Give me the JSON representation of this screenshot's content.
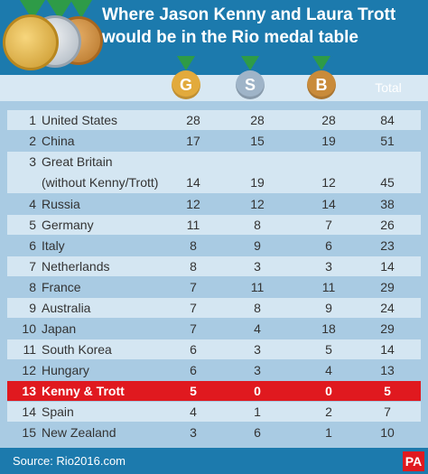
{
  "header": {
    "title_line1": "Where Jason Kenny and Laura Trott",
    "title_line2": "would be in the Rio medal table"
  },
  "columns": {
    "gold": "G",
    "silver": "S",
    "bronze": "B",
    "total": "Total"
  },
  "colors": {
    "banner": "#1c7aad",
    "gold": "#e2aa3c",
    "silver": "#9fb4c8",
    "bronze": "#c98b3a",
    "highlight": "#e0191f",
    "ribbon": "#2e9b47"
  },
  "rows": [
    {
      "rank": "1",
      "country": "United States",
      "g": "28",
      "s": "28",
      "b": "28",
      "t": "84"
    },
    {
      "rank": "2",
      "country": "China",
      "g": "17",
      "s": "15",
      "b": "19",
      "t": "51"
    },
    {
      "rank": "3",
      "country": "Great Britain",
      "country2": "(without Kenny/Trott)",
      "g": "14",
      "s": "19",
      "b": "12",
      "t": "45"
    },
    {
      "rank": "4",
      "country": "Russia",
      "g": "12",
      "s": "12",
      "b": "14",
      "t": "38"
    },
    {
      "rank": "5",
      "country": "Germany",
      "g": "11",
      "s": "8",
      "b": "7",
      "t": "26"
    },
    {
      "rank": "6",
      "country": "Italy",
      "g": "8",
      "s": "9",
      "b": "6",
      "t": "23"
    },
    {
      "rank": "7",
      "country": "Netherlands",
      "g": "8",
      "s": "3",
      "b": "3",
      "t": "14"
    },
    {
      "rank": "8",
      "country": "France",
      "g": "7",
      "s": "11",
      "b": "11",
      "t": "29"
    },
    {
      "rank": "9",
      "country": "Australia",
      "g": "7",
      "s": "8",
      "b": "9",
      "t": "24"
    },
    {
      "rank": "10",
      "country": "Japan",
      "g": "7",
      "s": "4",
      "b": "18",
      "t": "29"
    },
    {
      "rank": "11",
      "country": "South Korea",
      "g": "6",
      "s": "3",
      "b": "5",
      "t": "14"
    },
    {
      "rank": "12",
      "country": "Hungary",
      "g": "6",
      "s": "3",
      "b": "4",
      "t": "13"
    },
    {
      "rank": "13",
      "country": "Kenny & Trott",
      "g": "5",
      "s": "0",
      "b": "0",
      "t": "5"
    },
    {
      "rank": "14",
      "country": "Spain",
      "g": "4",
      "s": "1",
      "b": "2",
      "t": "7"
    },
    {
      "rank": "15",
      "country": "New Zealand",
      "g": "3",
      "s": "6",
      "b": "1",
      "t": "10"
    }
  ],
  "footer": {
    "source": "Source: Rio2016.com",
    "logo": "PA"
  }
}
